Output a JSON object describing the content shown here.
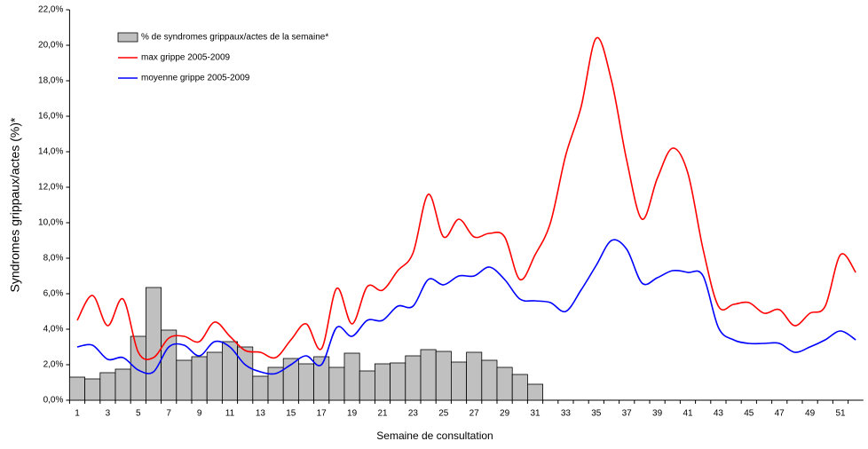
{
  "chart_data": {
    "type": "bar_line",
    "x_label": "Semaine de consultation",
    "y_label": "Syndromes grippaux/actes (%)*",
    "categories": [
      "1",
      null,
      "3",
      null,
      "5",
      null,
      "7",
      null,
      "9",
      null,
      "11",
      null,
      "13",
      null,
      "15",
      null,
      "17",
      null,
      "19",
      null,
      "21",
      null,
      "23",
      null,
      "25",
      null,
      "27",
      null,
      "29",
      null,
      "31",
      null,
      "33",
      null,
      "35",
      null,
      "37",
      null,
      "39",
      null,
      "41",
      null,
      "43",
      null,
      "45",
      null,
      "47",
      null,
      "49",
      null,
      "51",
      null
    ],
    "ylim": [
      0,
      22
    ],
    "yticks": [
      {
        "value": 0,
        "label": "0,0%"
      },
      {
        "value": 2,
        "label": "2,0%"
      },
      {
        "value": 4,
        "label": "4,0%"
      },
      {
        "value": 6,
        "label": "6,0%"
      },
      {
        "value": 8,
        "label": "8,0%"
      },
      {
        "value": 10,
        "label": "10,0%"
      },
      {
        "value": 12,
        "label": "12,0%"
      },
      {
        "value": 14,
        "label": "14,0%"
      },
      {
        "value": 16,
        "label": "16,0%"
      },
      {
        "value": 18,
        "label": "18,0%"
      },
      {
        "value": 20,
        "label": "20,0%"
      },
      {
        "value": 22,
        "label": "22,0%"
      }
    ],
    "series": [
      {
        "name": "% de syndromes grippaux/actes de la semaine*",
        "type": "bar",
        "color": "#c0c0c0",
        "values": [
          1.3,
          1.2,
          1.55,
          1.75,
          3.6,
          6.35,
          3.95,
          2.25,
          2.45,
          2.7,
          3.3,
          3.0,
          1.35,
          1.85,
          2.35,
          2.05,
          2.45,
          1.85,
          2.65,
          1.65,
          2.05,
          2.1,
          2.5,
          2.85,
          2.75,
          2.15,
          2.7,
          2.25,
          1.85,
          1.45,
          0.9,
          null,
          null,
          null,
          null,
          null,
          null,
          null,
          null,
          null,
          null,
          null,
          null,
          null,
          null,
          null,
          null,
          null,
          null,
          null,
          null,
          null
        ]
      },
      {
        "name": "max grippe 2005-2009",
        "type": "line",
        "color": "#ff0000",
        "values": [
          4.5,
          5.9,
          4.2,
          5.7,
          2.7,
          2.4,
          3.5,
          3.6,
          3.3,
          4.4,
          3.6,
          2.8,
          2.7,
          2.4,
          3.4,
          4.3,
          2.9,
          6.3,
          4.3,
          6.4,
          6.2,
          7.3,
          8.3,
          11.6,
          9.2,
          10.2,
          9.2,
          9.4,
          9.2,
          6.8,
          8.2,
          10.0,
          13.8,
          16.5,
          20.4,
          18.0,
          13.5,
          10.2,
          12.5,
          14.2,
          12.8,
          8.5,
          5.3,
          5.4,
          5.5,
          4.9,
          5.1,
          4.2,
          4.9,
          5.3,
          8.2,
          7.2
        ]
      },
      {
        "name": "moyenne grippe 2005-2009",
        "type": "line",
        "color": "#0000ff",
        "values": [
          3.0,
          3.1,
          2.3,
          2.4,
          1.7,
          1.6,
          3.0,
          3.1,
          2.5,
          3.3,
          3.0,
          2.0,
          1.6,
          1.5,
          2.0,
          2.5,
          2.0,
          4.1,
          3.6,
          4.5,
          4.5,
          5.3,
          5.3,
          6.8,
          6.5,
          7.0,
          7.0,
          7.5,
          6.8,
          5.7,
          5.6,
          5.5,
          5.0,
          6.2,
          7.6,
          9.0,
          8.5,
          6.6,
          6.9,
          7.3,
          7.2,
          7.0,
          4.1,
          3.4,
          3.2,
          3.2,
          3.2,
          2.7,
          3.0,
          3.4,
          3.9,
          3.4
        ]
      }
    ]
  }
}
